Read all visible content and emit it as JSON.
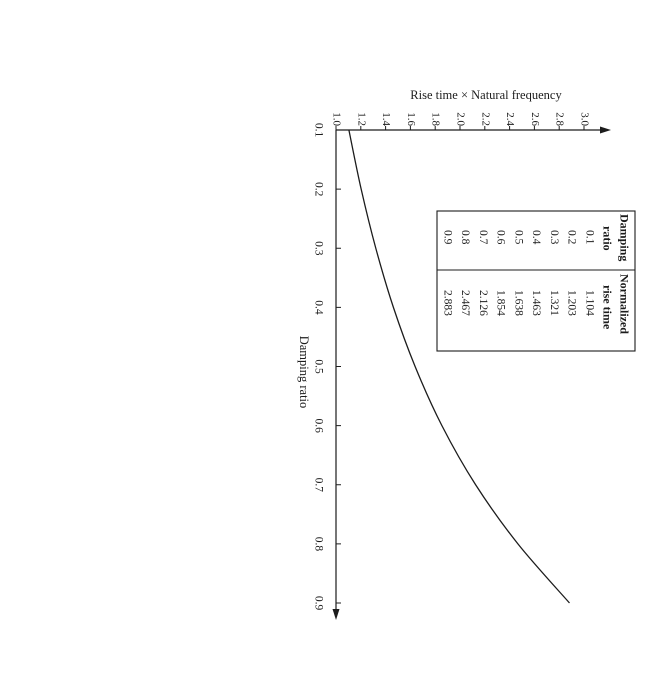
{
  "chart_data": {
    "type": "line",
    "orientation": "rotated-90-clockwise",
    "xlabel": "Damping ratio",
    "ylabel": "Rise time × Natural frequency",
    "xlim": [
      0.1,
      0.9
    ],
    "ylim": [
      1.0,
      3.0
    ],
    "x_ticks": [
      "0.1",
      "0.2",
      "0.3",
      "0.4",
      "0.5",
      "0.6",
      "0.7",
      "0.8",
      "0.9"
    ],
    "y_ticks": [
      "1.0",
      "1.2",
      "1.4",
      "1.6",
      "1.8",
      "2.0",
      "2.2",
      "2.4",
      "2.6",
      "2.8",
      "3.0"
    ],
    "series": [
      {
        "x": [
          0.1,
          0.2,
          0.3,
          0.4,
          0.5,
          0.6,
          0.7,
          0.8,
          0.9
        ],
        "values": [
          1.104,
          1.203,
          1.321,
          1.463,
          1.638,
          1.854,
          2.126,
          2.467,
          2.883
        ]
      }
    ],
    "table": {
      "headers": [
        [
          "Damping",
          "ratio"
        ],
        [
          "Normalized",
          "rise time"
        ]
      ],
      "rows": [
        [
          "0.1",
          "1.104"
        ],
        [
          "0.2",
          "1.203"
        ],
        [
          "0.3",
          "1.321"
        ],
        [
          "0.4",
          "1.463"
        ],
        [
          "0.5",
          "1.638"
        ],
        [
          "0.6",
          "1.854"
        ],
        [
          "0.7",
          "2.126"
        ],
        [
          "0.8",
          "2.467"
        ],
        [
          "0.9",
          "2.883"
        ]
      ]
    },
    "grid": false,
    "legend": "none"
  }
}
